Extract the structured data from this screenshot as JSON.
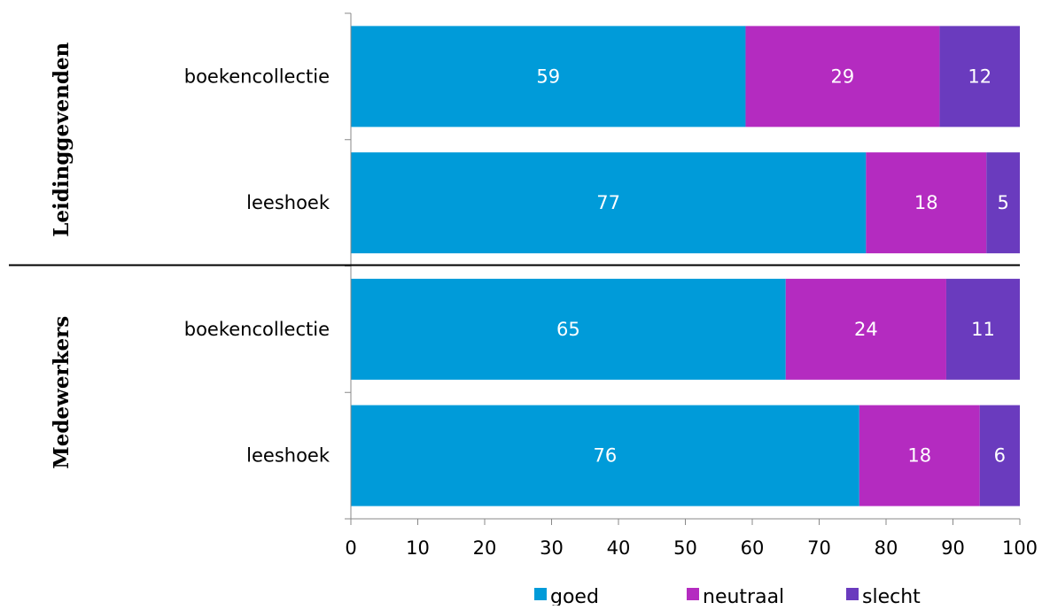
{
  "chart_data": {
    "type": "bar",
    "orientation": "horizontal",
    "stacked": true,
    "groups": [
      {
        "name": "Leidinggevenden",
        "rows": [
          {
            "category": "boekencollectie",
            "values": [
              59,
              29,
              12
            ]
          },
          {
            "category": "leeshoek",
            "values": [
              77,
              18,
              5
            ]
          }
        ]
      },
      {
        "name": "Medewerkers",
        "rows": [
          {
            "category": "boekencollectie",
            "values": [
              65,
              24,
              11
            ]
          },
          {
            "category": "leeshoek",
            "values": [
              76,
              18,
              6
            ]
          }
        ]
      }
    ],
    "series": [
      {
        "name": "goed",
        "color": "#009bd9"
      },
      {
        "name": "neutraal",
        "color": "#b42bc0"
      },
      {
        "name": "slecht",
        "color": "#6a3bbe"
      }
    ],
    "xlim": [
      0,
      100
    ],
    "xticks": [
      0,
      10,
      20,
      30,
      40,
      50,
      60,
      70,
      80,
      90,
      100
    ],
    "grid": false,
    "legend_position": "bottom"
  }
}
